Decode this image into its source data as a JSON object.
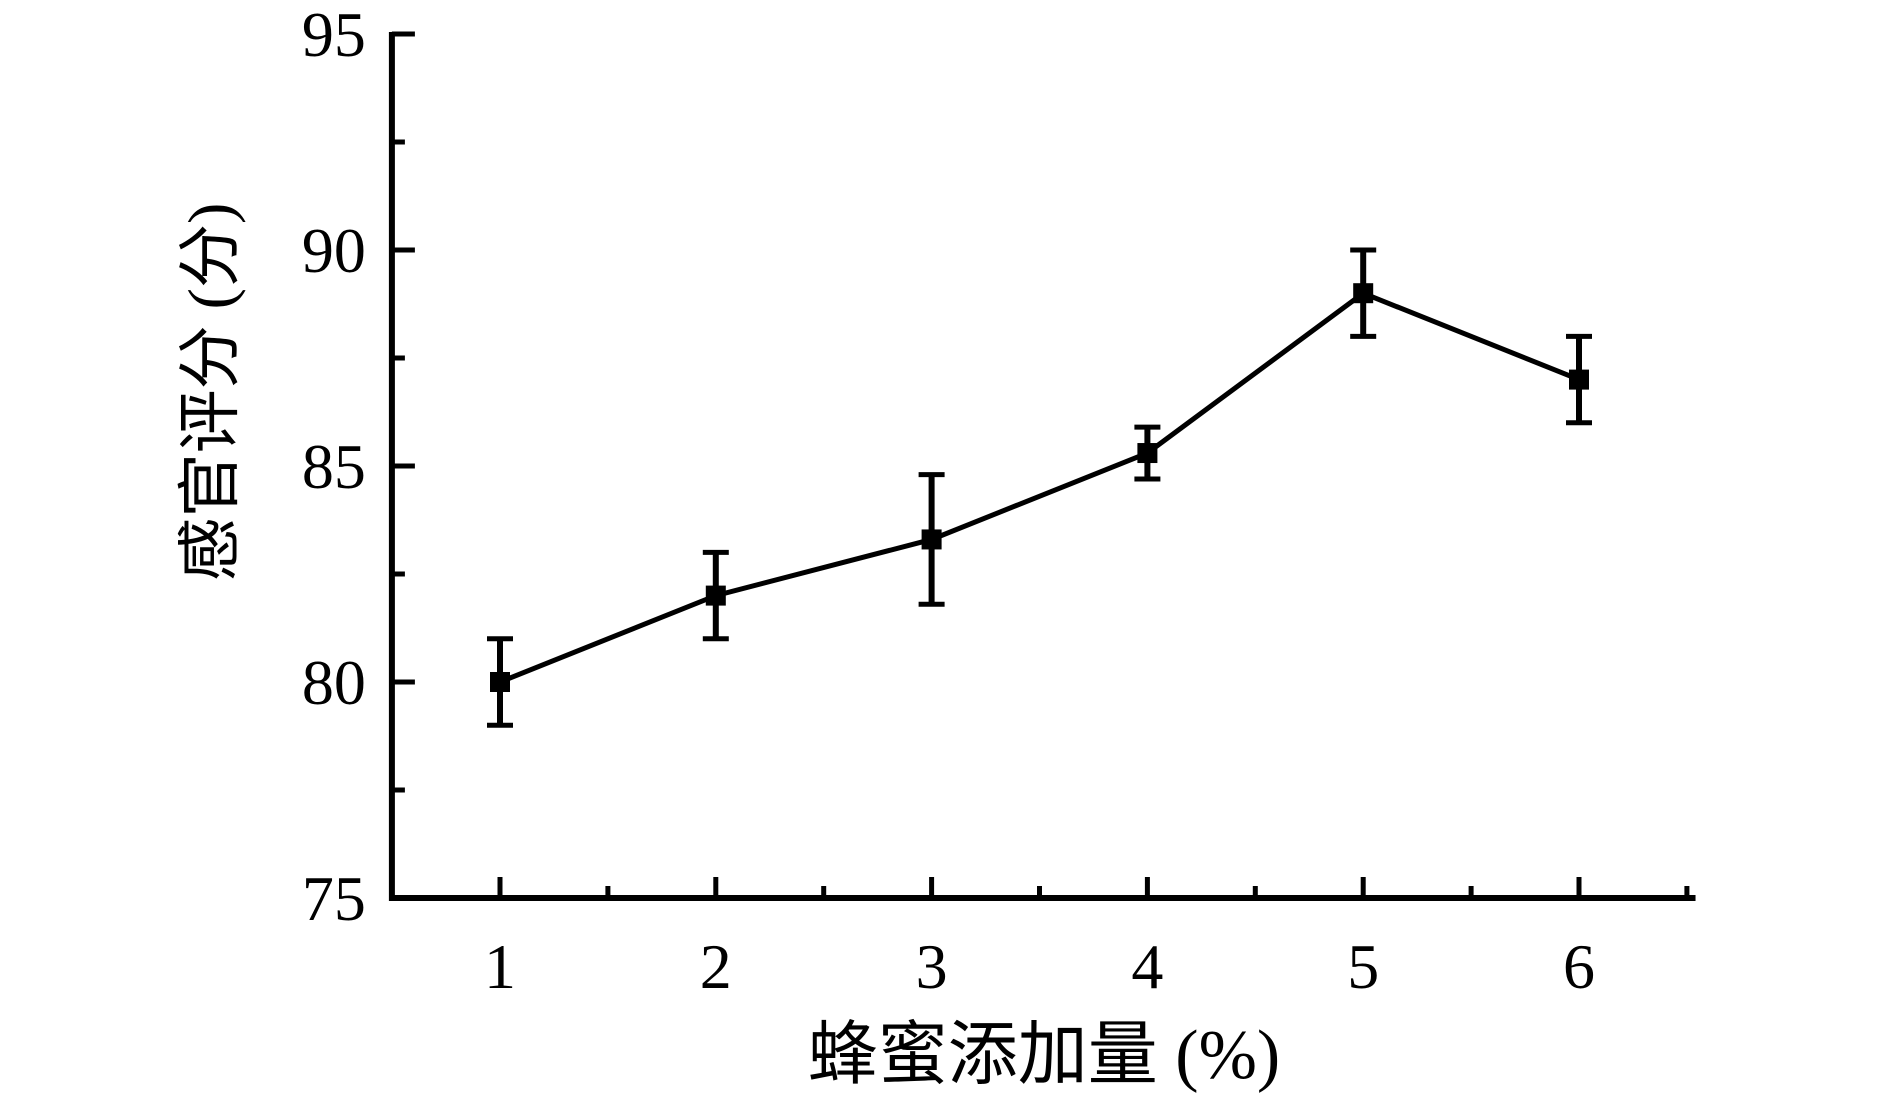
{
  "figure": {
    "background": "#ffffff",
    "foreground": "#000000"
  },
  "chart_data": {
    "type": "line",
    "title": "",
    "xlabel": "蜂蜜添加量 (%)",
    "ylabel": "感官评分 (分)",
    "x": [
      1,
      2,
      3,
      4,
      5,
      6
    ],
    "series": [
      {
        "name": "感官评分",
        "values": [
          80.0,
          82.0,
          83.3,
          85.3,
          89.0,
          87.0
        ],
        "yerr": [
          1.0,
          1.0,
          1.5,
          0.6,
          1.0,
          1.0
        ],
        "marker": "square",
        "color": "#000000"
      }
    ],
    "xlim": [
      0.5,
      6.54
    ],
    "ylim": [
      75,
      95
    ],
    "x_ticks": {
      "major": [
        1,
        2,
        3,
        4,
        5,
        6
      ],
      "labels": [
        "1",
        "2",
        "3",
        "4",
        "5",
        "6"
      ],
      "minor": [
        1.5,
        2.5,
        3.5,
        4.5,
        5.5,
        6.5
      ]
    },
    "y_ticks": {
      "major": [
        75,
        80,
        85,
        90,
        95
      ],
      "labels": [
        "75",
        "80",
        "85",
        "90",
        "95"
      ],
      "minor": [
        77.5,
        82.5,
        87.5,
        92.5
      ]
    },
    "grid": false,
    "legend": null,
    "axes_style": "left-bottom-only, ticks pointing inward",
    "line_color": "#000000",
    "background": "#ffffff"
  }
}
